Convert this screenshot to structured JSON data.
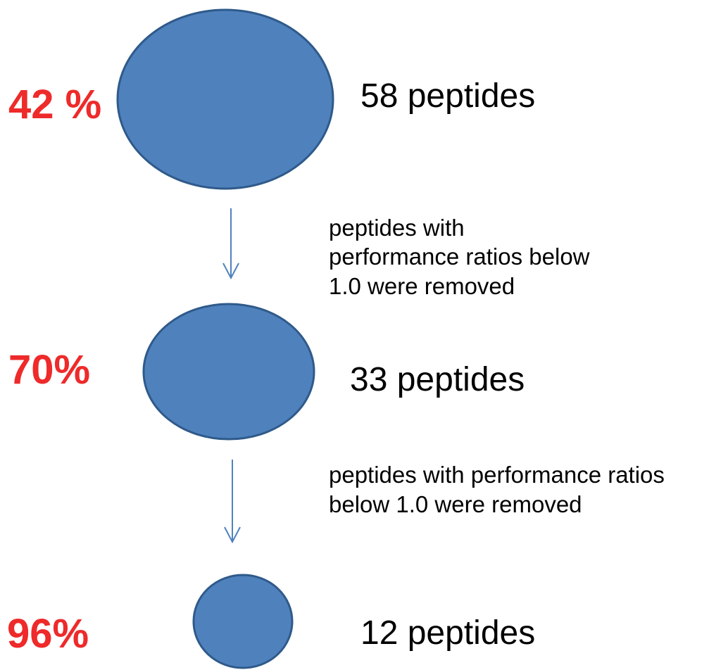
{
  "nodes": [
    {
      "percent": "42 %",
      "label": "58 peptides"
    },
    {
      "percent": "70%",
      "label": "33 peptides"
    },
    {
      "percent": "96%",
      "label": "12 peptides"
    }
  ],
  "steps": [
    {
      "lines": [
        "peptides with",
        "performance ratios below",
        "1.0 were removed"
      ]
    },
    {
      "lines": [
        "peptides with performance ratios",
        "below 1.0 were removed"
      ]
    }
  ]
}
